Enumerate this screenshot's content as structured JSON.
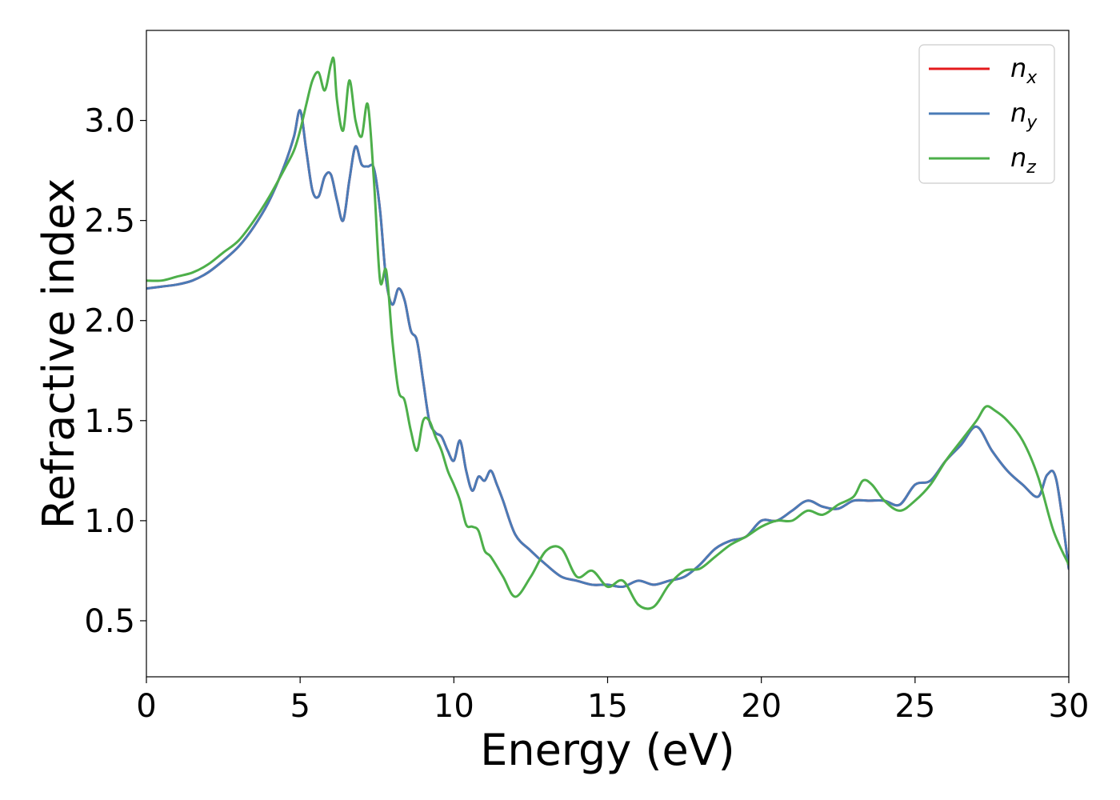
{
  "chart_data": {
    "type": "line",
    "title": "",
    "xlabel": "Energy (eV)",
    "ylabel": "Refractive index",
    "xlim": [
      0,
      30
    ],
    "ylim": [
      0.22,
      3.45
    ],
    "xticks": [
      0,
      5,
      10,
      15,
      20,
      25,
      30
    ],
    "xtick_labels": [
      "0",
      "5",
      "10",
      "15",
      "20",
      "25",
      "30"
    ],
    "yticks": [
      0.5,
      1.0,
      1.5,
      2.0,
      2.5,
      3.0
    ],
    "ytick_labels": [
      "0.5",
      "1.0",
      "1.5",
      "2.0",
      "2.5",
      "3.0"
    ],
    "grid": false,
    "legend_position": "top-right",
    "series": [
      {
        "name": "n",
        "subscript": "x",
        "color": "#e41a1c",
        "x": [
          0,
          0.5,
          1,
          1.5,
          2,
          2.5,
          3,
          3.5,
          4,
          4.5,
          4.8,
          5.0,
          5.2,
          5.4,
          5.6,
          5.8,
          6.0,
          6.2,
          6.4,
          6.6,
          6.8,
          7.0,
          7.2,
          7.4,
          7.6,
          7.8,
          8.0,
          8.2,
          8.4,
          8.6,
          8.8,
          9.0,
          9.2,
          9.4,
          9.6,
          9.8,
          10.0,
          10.2,
          10.4,
          10.6,
          10.8,
          11.0,
          11.2,
          11.4,
          11.6,
          12.0,
          12.5,
          13.0,
          13.5,
          14.0,
          14.5,
          15.0,
          15.5,
          16.0,
          16.5,
          17.0,
          17.5,
          18.0,
          18.5,
          19.0,
          19.5,
          20.0,
          20.5,
          21.0,
          21.5,
          22.0,
          22.5,
          23.0,
          23.5,
          24.0,
          24.5,
          25.0,
          25.5,
          26.0,
          26.5,
          27.0,
          27.5,
          28.0,
          28.5,
          29.0,
          29.3,
          29.6,
          30.0
        ],
        "y": [
          2.16,
          2.17,
          2.18,
          2.2,
          2.24,
          2.3,
          2.37,
          2.47,
          2.6,
          2.78,
          2.92,
          3.05,
          2.85,
          2.65,
          2.62,
          2.72,
          2.73,
          2.6,
          2.5,
          2.7,
          2.87,
          2.78,
          2.77,
          2.76,
          2.55,
          2.2,
          2.08,
          2.16,
          2.1,
          1.95,
          1.9,
          1.7,
          1.5,
          1.44,
          1.42,
          1.35,
          1.3,
          1.4,
          1.25,
          1.15,
          1.22,
          1.2,
          1.25,
          1.18,
          1.1,
          0.93,
          0.85,
          0.78,
          0.72,
          0.7,
          0.68,
          0.68,
          0.67,
          0.7,
          0.68,
          0.7,
          0.72,
          0.78,
          0.86,
          0.9,
          0.92,
          1.0,
          1.0,
          1.05,
          1.1,
          1.07,
          1.06,
          1.1,
          1.1,
          1.1,
          1.08,
          1.18,
          1.2,
          1.3,
          1.38,
          1.47,
          1.35,
          1.25,
          1.18,
          1.12,
          1.23,
          1.2,
          0.76
        ]
      },
      {
        "name": "n",
        "subscript": "y",
        "color": "#4a7bb7",
        "x": [
          0,
          0.5,
          1,
          1.5,
          2,
          2.5,
          3,
          3.5,
          4,
          4.5,
          4.8,
          5.0,
          5.2,
          5.4,
          5.6,
          5.8,
          6.0,
          6.2,
          6.4,
          6.6,
          6.8,
          7.0,
          7.2,
          7.4,
          7.6,
          7.8,
          8.0,
          8.2,
          8.4,
          8.6,
          8.8,
          9.0,
          9.2,
          9.4,
          9.6,
          9.8,
          10.0,
          10.2,
          10.4,
          10.6,
          10.8,
          11.0,
          11.2,
          11.4,
          11.6,
          12.0,
          12.5,
          13.0,
          13.5,
          14.0,
          14.5,
          15.0,
          15.5,
          16.0,
          16.5,
          17.0,
          17.5,
          18.0,
          18.5,
          19.0,
          19.5,
          20.0,
          20.5,
          21.0,
          21.5,
          22.0,
          22.5,
          23.0,
          23.5,
          24.0,
          24.5,
          25.0,
          25.5,
          26.0,
          26.5,
          27.0,
          27.5,
          28.0,
          28.5,
          29.0,
          29.3,
          29.6,
          30.0
        ],
        "y": [
          2.16,
          2.17,
          2.18,
          2.2,
          2.24,
          2.3,
          2.37,
          2.47,
          2.6,
          2.78,
          2.92,
          3.05,
          2.85,
          2.65,
          2.62,
          2.72,
          2.73,
          2.6,
          2.5,
          2.7,
          2.87,
          2.78,
          2.77,
          2.76,
          2.55,
          2.2,
          2.08,
          2.16,
          2.1,
          1.95,
          1.9,
          1.7,
          1.5,
          1.44,
          1.42,
          1.35,
          1.3,
          1.4,
          1.25,
          1.15,
          1.22,
          1.2,
          1.25,
          1.18,
          1.1,
          0.93,
          0.85,
          0.78,
          0.72,
          0.7,
          0.68,
          0.68,
          0.67,
          0.7,
          0.68,
          0.7,
          0.72,
          0.78,
          0.86,
          0.9,
          0.92,
          1.0,
          1.0,
          1.05,
          1.1,
          1.07,
          1.06,
          1.1,
          1.1,
          1.1,
          1.08,
          1.18,
          1.2,
          1.3,
          1.38,
          1.47,
          1.35,
          1.25,
          1.18,
          1.12,
          1.23,
          1.2,
          0.76
        ]
      },
      {
        "name": "n",
        "subscript": "z",
        "color": "#4daf4a",
        "x": [
          0,
          0.5,
          1,
          1.5,
          2,
          2.5,
          3,
          3.5,
          4,
          4.5,
          4.8,
          5.0,
          5.2,
          5.4,
          5.6,
          5.8,
          6.0,
          6.1,
          6.2,
          6.4,
          6.6,
          6.8,
          7.0,
          7.2,
          7.4,
          7.6,
          7.8,
          8.0,
          8.2,
          8.4,
          8.6,
          8.8,
          9.0,
          9.2,
          9.4,
          9.6,
          9.8,
          10.0,
          10.2,
          10.4,
          10.6,
          10.8,
          11.0,
          11.2,
          11.6,
          12.0,
          12.5,
          13.0,
          13.5,
          14.0,
          14.5,
          15.0,
          15.5,
          16.0,
          16.5,
          17.0,
          17.5,
          18.0,
          18.5,
          19.0,
          19.5,
          20.0,
          20.5,
          21.0,
          21.5,
          22.0,
          22.5,
          23.0,
          23.3,
          23.6,
          24.0,
          24.5,
          25.0,
          25.5,
          26.0,
          26.5,
          27.0,
          27.3,
          27.6,
          28.0,
          28.5,
          29.0,
          29.5,
          30.0
        ],
        "y": [
          2.2,
          2.2,
          2.22,
          2.24,
          2.28,
          2.34,
          2.4,
          2.5,
          2.62,
          2.76,
          2.85,
          2.95,
          3.08,
          3.2,
          3.24,
          3.15,
          3.28,
          3.3,
          3.1,
          2.95,
          3.2,
          3.0,
          2.92,
          3.08,
          2.7,
          2.2,
          2.25,
          1.9,
          1.65,
          1.6,
          1.45,
          1.35,
          1.5,
          1.5,
          1.42,
          1.35,
          1.25,
          1.18,
          1.1,
          0.98,
          0.97,
          0.95,
          0.85,
          0.82,
          0.72,
          0.62,
          0.72,
          0.85,
          0.86,
          0.72,
          0.75,
          0.67,
          0.7,
          0.58,
          0.57,
          0.68,
          0.75,
          0.76,
          0.82,
          0.88,
          0.92,
          0.97,
          1.0,
          1.0,
          1.05,
          1.03,
          1.08,
          1.12,
          1.2,
          1.18,
          1.1,
          1.05,
          1.1,
          1.18,
          1.3,
          1.4,
          1.5,
          1.57,
          1.55,
          1.5,
          1.4,
          1.22,
          0.95,
          0.78
        ]
      }
    ]
  }
}
